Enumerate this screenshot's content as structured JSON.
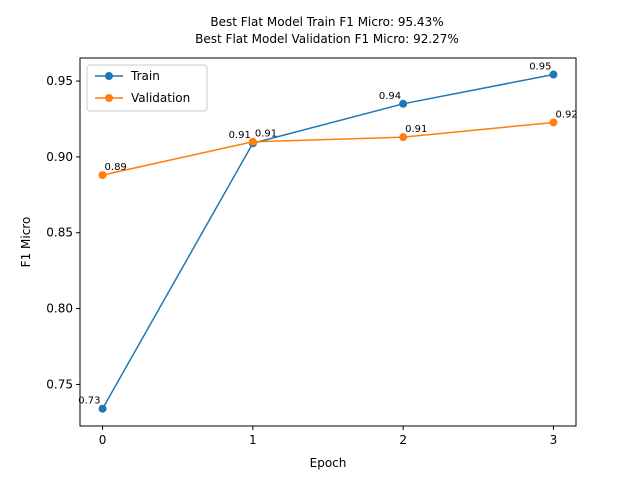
{
  "chart_data": {
    "type": "line",
    "title_lines": [
      "Best Flat Model Train F1 Micro: 95.43%",
      "Best Flat Model Validation F1 Micro: 92.27%"
    ],
    "xlabel": "Epoch",
    "ylabel": "F1 Micro",
    "x": [
      0,
      1,
      2,
      3
    ],
    "xlim": [
      -0.15,
      3.15
    ],
    "ylim": [
      0.7226,
      0.9652
    ],
    "yticks": [
      0.75,
      0.8,
      0.85,
      0.9,
      0.95
    ],
    "ytick_labels": [
      "0.75",
      "0.80",
      "0.85",
      "0.90",
      "0.95"
    ],
    "xticks": [
      0,
      1,
      2,
      3
    ],
    "xtick_labels": [
      "0",
      "1",
      "2",
      "3"
    ],
    "grid": false,
    "legend_position": "top-left",
    "series": [
      {
        "name": "Train",
        "color": "#1f77b4",
        "values": [
          0.734,
          0.909,
          0.935,
          0.9543
        ],
        "labels": [
          "0.73",
          "0.91",
          "0.94",
          "0.95"
        ]
      },
      {
        "name": "Validation",
        "color": "#ff7f0e",
        "values": [
          0.888,
          0.91,
          0.913,
          0.9227
        ],
        "labels": [
          "0.89",
          "0.91",
          "0.91",
          "0.92"
        ]
      }
    ]
  }
}
